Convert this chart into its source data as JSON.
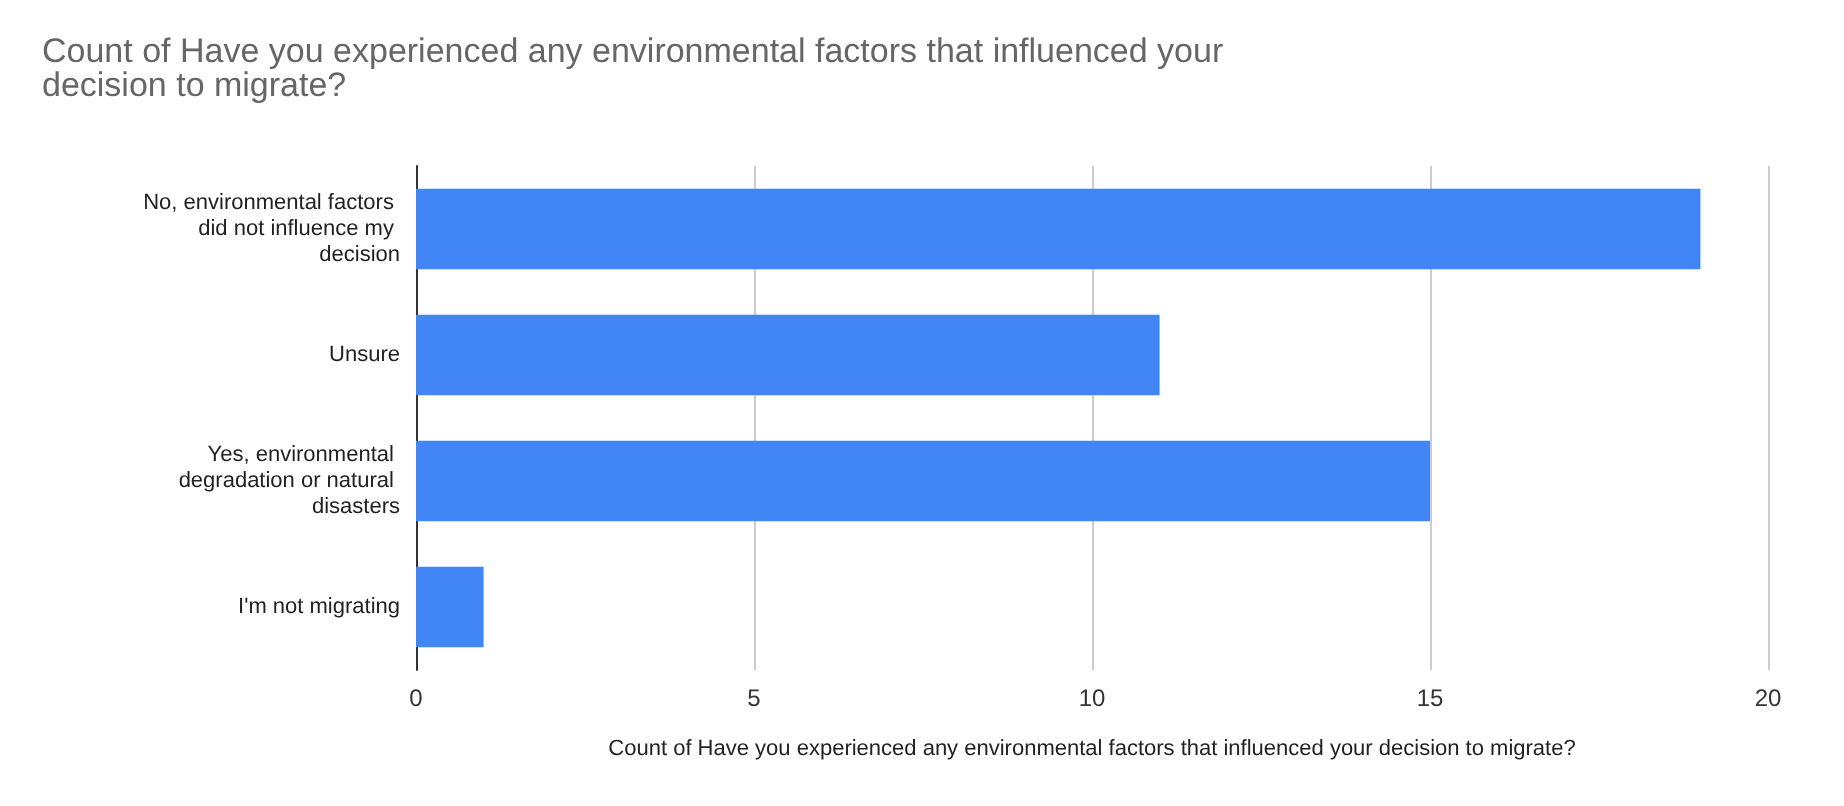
{
  "chart_data": {
    "type": "bar",
    "orientation": "horizontal",
    "title": "Count of Have you experienced any environmental factors that influenced your decision to migrate?",
    "xlabel": "Count of Have you experienced any environmental factors that influenced your decision to migrate?",
    "categories": [
      "No, environmental factors did not influence my decision",
      "Unsure",
      "Yes, environmental degradation or natural disasters",
      "I'm not migrating"
    ],
    "values": [
      19,
      11,
      15,
      1
    ],
    "color": "#4285f4",
    "xlim": [
      0,
      20
    ],
    "xticks": [
      0,
      5,
      10,
      15,
      20
    ],
    "grid": "x"
  }
}
